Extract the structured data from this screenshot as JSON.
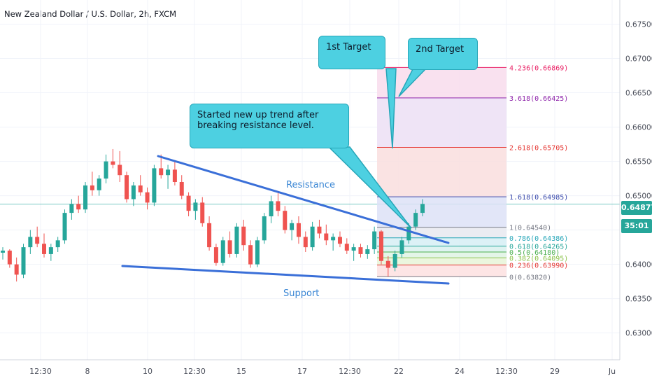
{
  "chart_data": {
    "type": "candlestick",
    "title": "New Zealand Dollar / U.S. Dollar, 2h, FXCM",
    "ylim": [
      0.6265,
      0.6775
    ],
    "y_ticks": [
      "0.67500",
      "0.67000",
      "0.66500",
      "0.66000",
      "0.65500",
      "0.65000",
      "0.64500",
      "0.64000",
      "0.63500",
      "0.63000"
    ],
    "x_ticks": [
      "12:30",
      "8",
      "10",
      "12:30",
      "15",
      "17",
      "12:30",
      "22",
      "24",
      "12:30",
      "29",
      "Ju"
    ],
    "last_price": "0.64877",
    "countdown": "35:01",
    "annotations": {
      "resistance": "Resistance",
      "support": "Support",
      "callout_main": "Started new up trend after breaking resistance level.",
      "target1": "1st Target",
      "target2": "2nd Target"
    },
    "fib_levels": [
      {
        "ratio": 0,
        "label": "0(0.63820)",
        "price": 0.6382,
        "color": "#787b86"
      },
      {
        "ratio": 0.236,
        "label": "0.236(0.63990)",
        "price": 0.6399,
        "color": "#e53935"
      },
      {
        "ratio": 0.382,
        "label": "0.382(0.64095)",
        "price": 0.64095,
        "color": "#8bc34a"
      },
      {
        "ratio": 0.5,
        "label": "0.5(0.64180)",
        "price": 0.6418,
        "color": "#4caf50"
      },
      {
        "ratio": 0.618,
        "label": "0.618(0.64265)",
        "price": 0.64265,
        "color": "#26a69a"
      },
      {
        "ratio": 0.786,
        "label": "0.786(0.64386)",
        "price": 0.64386,
        "color": "#26a6b8"
      },
      {
        "ratio": 1,
        "label": "1(0.64540)",
        "price": 0.6454,
        "color": "#787b86"
      },
      {
        "ratio": 1.618,
        "label": "1.618(0.64985)",
        "price": 0.64985,
        "color": "#3949ab"
      },
      {
        "ratio": 2.618,
        "label": "2.618(0.65705)",
        "price": 0.65705,
        "color": "#e53935"
      },
      {
        "ratio": 3.618,
        "label": "3.618(0.66425)",
        "price": 0.66425,
        "color": "#8e24aa"
      },
      {
        "ratio": 4.236,
        "label": "4.236(0.66869)",
        "price": 0.66869,
        "color": "#e91e63"
      }
    ],
    "candles": [
      {
        "o": 0.6417,
        "h": 0.6425,
        "l": 0.6407,
        "c": 0.642
      },
      {
        "o": 0.642,
        "h": 0.6422,
        "l": 0.6395,
        "c": 0.64
      },
      {
        "o": 0.64,
        "h": 0.641,
        "l": 0.6375,
        "c": 0.6385
      },
      {
        "o": 0.6385,
        "h": 0.643,
        "l": 0.638,
        "c": 0.6425
      },
      {
        "o": 0.6425,
        "h": 0.645,
        "l": 0.6415,
        "c": 0.644
      },
      {
        "o": 0.644,
        "h": 0.6455,
        "l": 0.6425,
        "c": 0.643
      },
      {
        "o": 0.643,
        "h": 0.6445,
        "l": 0.641,
        "c": 0.6415
      },
      {
        "o": 0.6415,
        "h": 0.643,
        "l": 0.6405,
        "c": 0.6425
      },
      {
        "o": 0.6425,
        "h": 0.644,
        "l": 0.6418,
        "c": 0.6435
      },
      {
        "o": 0.6435,
        "h": 0.648,
        "l": 0.643,
        "c": 0.6475
      },
      {
        "o": 0.6475,
        "h": 0.6495,
        "l": 0.6465,
        "c": 0.6488
      },
      {
        "o": 0.6488,
        "h": 0.65,
        "l": 0.6475,
        "c": 0.648
      },
      {
        "o": 0.648,
        "h": 0.652,
        "l": 0.6475,
        "c": 0.6515
      },
      {
        "o": 0.6515,
        "h": 0.6535,
        "l": 0.65,
        "c": 0.6508
      },
      {
        "o": 0.6508,
        "h": 0.653,
        "l": 0.65,
        "c": 0.6525
      },
      {
        "o": 0.6525,
        "h": 0.656,
        "l": 0.6518,
        "c": 0.655
      },
      {
        "o": 0.655,
        "h": 0.6568,
        "l": 0.654,
        "c": 0.6545
      },
      {
        "o": 0.6545,
        "h": 0.6565,
        "l": 0.652,
        "c": 0.653
      },
      {
        "o": 0.653,
        "h": 0.6535,
        "l": 0.649,
        "c": 0.6495
      },
      {
        "o": 0.6495,
        "h": 0.652,
        "l": 0.6485,
        "c": 0.6515
      },
      {
        "o": 0.6515,
        "h": 0.653,
        "l": 0.65,
        "c": 0.6505
      },
      {
        "o": 0.6505,
        "h": 0.6512,
        "l": 0.648,
        "c": 0.649
      },
      {
        "o": 0.649,
        "h": 0.6545,
        "l": 0.6485,
        "c": 0.654
      },
      {
        "o": 0.654,
        "h": 0.656,
        "l": 0.6525,
        "c": 0.653
      },
      {
        "o": 0.653,
        "h": 0.6545,
        "l": 0.651,
        "c": 0.6538
      },
      {
        "o": 0.6538,
        "h": 0.655,
        "l": 0.6515,
        "c": 0.652
      },
      {
        "o": 0.652,
        "h": 0.653,
        "l": 0.6495,
        "c": 0.65
      },
      {
        "o": 0.65,
        "h": 0.6505,
        "l": 0.647,
        "c": 0.6478
      },
      {
        "o": 0.6478,
        "h": 0.6495,
        "l": 0.6465,
        "c": 0.649
      },
      {
        "o": 0.649,
        "h": 0.6498,
        "l": 0.6455,
        "c": 0.646
      },
      {
        "o": 0.646,
        "h": 0.647,
        "l": 0.642,
        "c": 0.6425
      },
      {
        "o": 0.6425,
        "h": 0.643,
        "l": 0.6398,
        "c": 0.6402
      },
      {
        "o": 0.6402,
        "h": 0.644,
        "l": 0.6398,
        "c": 0.6435
      },
      {
        "o": 0.6435,
        "h": 0.6448,
        "l": 0.641,
        "c": 0.6415
      },
      {
        "o": 0.6415,
        "h": 0.646,
        "l": 0.641,
        "c": 0.6455
      },
      {
        "o": 0.6455,
        "h": 0.6465,
        "l": 0.642,
        "c": 0.6428
      },
      {
        "o": 0.6428,
        "h": 0.6435,
        "l": 0.6395,
        "c": 0.64
      },
      {
        "o": 0.64,
        "h": 0.644,
        "l": 0.6396,
        "c": 0.6435
      },
      {
        "o": 0.6435,
        "h": 0.6475,
        "l": 0.643,
        "c": 0.647
      },
      {
        "o": 0.647,
        "h": 0.65,
        "l": 0.646,
        "c": 0.6492
      },
      {
        "o": 0.6492,
        "h": 0.6505,
        "l": 0.647,
        "c": 0.6478
      },
      {
        "o": 0.6478,
        "h": 0.6485,
        "l": 0.6445,
        "c": 0.645
      },
      {
        "o": 0.645,
        "h": 0.6465,
        "l": 0.6435,
        "c": 0.646
      },
      {
        "o": 0.646,
        "h": 0.647,
        "l": 0.643,
        "c": 0.644
      },
      {
        "o": 0.644,
        "h": 0.6448,
        "l": 0.6418,
        "c": 0.6425
      },
      {
        "o": 0.6425,
        "h": 0.6462,
        "l": 0.642,
        "c": 0.6455
      },
      {
        "o": 0.6455,
        "h": 0.6465,
        "l": 0.6438,
        "c": 0.6445
      },
      {
        "o": 0.6445,
        "h": 0.6458,
        "l": 0.6428,
        "c": 0.6435
      },
      {
        "o": 0.6435,
        "h": 0.6445,
        "l": 0.642,
        "c": 0.644
      },
      {
        "o": 0.644,
        "h": 0.6448,
        "l": 0.6425,
        "c": 0.643
      },
      {
        "o": 0.643,
        "h": 0.6438,
        "l": 0.6415,
        "c": 0.642
      },
      {
        "o": 0.642,
        "h": 0.643,
        "l": 0.6405,
        "c": 0.6425
      },
      {
        "o": 0.6425,
        "h": 0.643,
        "l": 0.641,
        "c": 0.6415
      },
      {
        "o": 0.6415,
        "h": 0.6428,
        "l": 0.6408,
        "c": 0.6422
      },
      {
        "o": 0.6422,
        "h": 0.6455,
        "l": 0.6415,
        "c": 0.6448
      },
      {
        "o": 0.6448,
        "h": 0.645,
        "l": 0.64,
        "c": 0.6405
      },
      {
        "o": 0.6405,
        "h": 0.6412,
        "l": 0.6382,
        "c": 0.6395
      },
      {
        "o": 0.6395,
        "h": 0.642,
        "l": 0.639,
        "c": 0.6415
      },
      {
        "o": 0.6415,
        "h": 0.644,
        "l": 0.641,
        "c": 0.6435
      },
      {
        "o": 0.6435,
        "h": 0.646,
        "l": 0.643,
        "c": 0.6455
      },
      {
        "o": 0.6455,
        "h": 0.648,
        "l": 0.645,
        "c": 0.6475
      },
      {
        "o": 0.6475,
        "h": 0.6495,
        "l": 0.647,
        "c": 0.6488
      }
    ]
  }
}
